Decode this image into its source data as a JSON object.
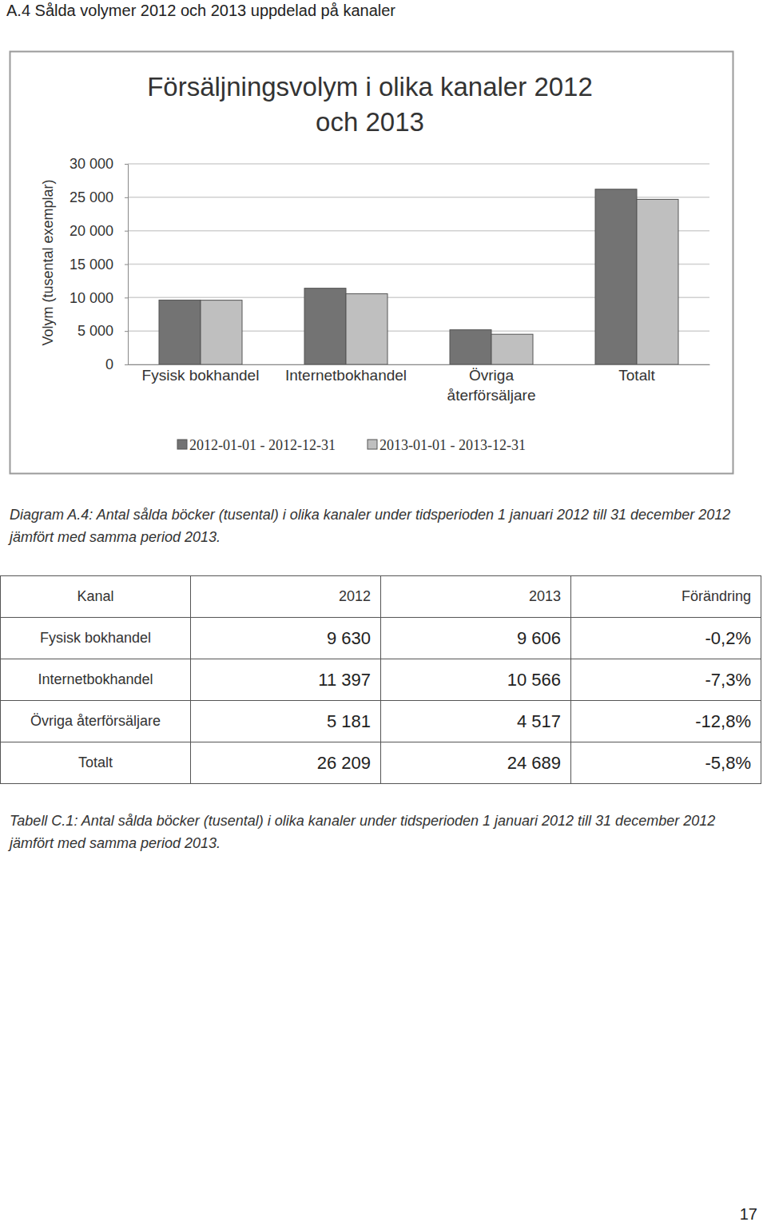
{
  "heading": "A.4 Sålda volymer 2012 och 2013 uppdelad på kanaler",
  "chart_data": {
    "type": "bar",
    "title": "Försäljningsvolym i olika kanaler 2012 och 2013",
    "y_label": "Volym (tusental exemplar)",
    "categories": [
      "Fysisk bokhandel",
      "Internetbokhandel",
      "Övriga återförsäljare",
      "Totalt"
    ],
    "series": [
      {
        "name": "2012-01-01 - 2012-12-31",
        "color": "#737373",
        "values": [
          9630,
          11397,
          5181,
          26209
        ]
      },
      {
        "name": "2013-01-01 - 2013-12-31",
        "color": "#bfbfbf",
        "values": [
          9606,
          10566,
          4517,
          24689
        ]
      }
    ],
    "ylim": [
      0,
      30000
    ],
    "yticks": [
      0,
      {
        "value": 5000,
        "label": "5 000"
      },
      {
        "value": 10000,
        "label": "10 000"
      },
      {
        "value": 15000,
        "label": "15 000"
      },
      {
        "value": 20000,
        "label": "20 000"
      },
      {
        "value": 25000,
        "label": "25 000"
      },
      {
        "value": 30000,
        "label": "30 000"
      }
    ],
    "grid": true,
    "legend": "bottom"
  },
  "figure_caption": "Diagram A.4: Antal sålda böcker (tusental) i olika kanaler under tidsperioden 1 januari 2012 till 31 december 2012 jämfört med samma period 2013.",
  "table": {
    "header": [
      "Kanal",
      "2012",
      "2013",
      "Förändring"
    ],
    "rows": [
      [
        "Fysisk bokhandel",
        "9 630",
        "9 606",
        "-0,2%"
      ],
      [
        "Internetbokhandel",
        "11 397",
        "10 566",
        "-7,3%"
      ],
      [
        "Övriga återförsäljare",
        "5 181",
        "4 517",
        "-12,8%"
      ],
      [
        "Totalt",
        "26 209",
        "24 689",
        "-5,8%"
      ]
    ]
  },
  "table_caption": "Tabell C.1: Antal sålda böcker (tusental) i olika kanaler under tidsperioden 1 januari 2012 till 31 december 2012 jämfört med samma period 2013.",
  "page_number": "17"
}
